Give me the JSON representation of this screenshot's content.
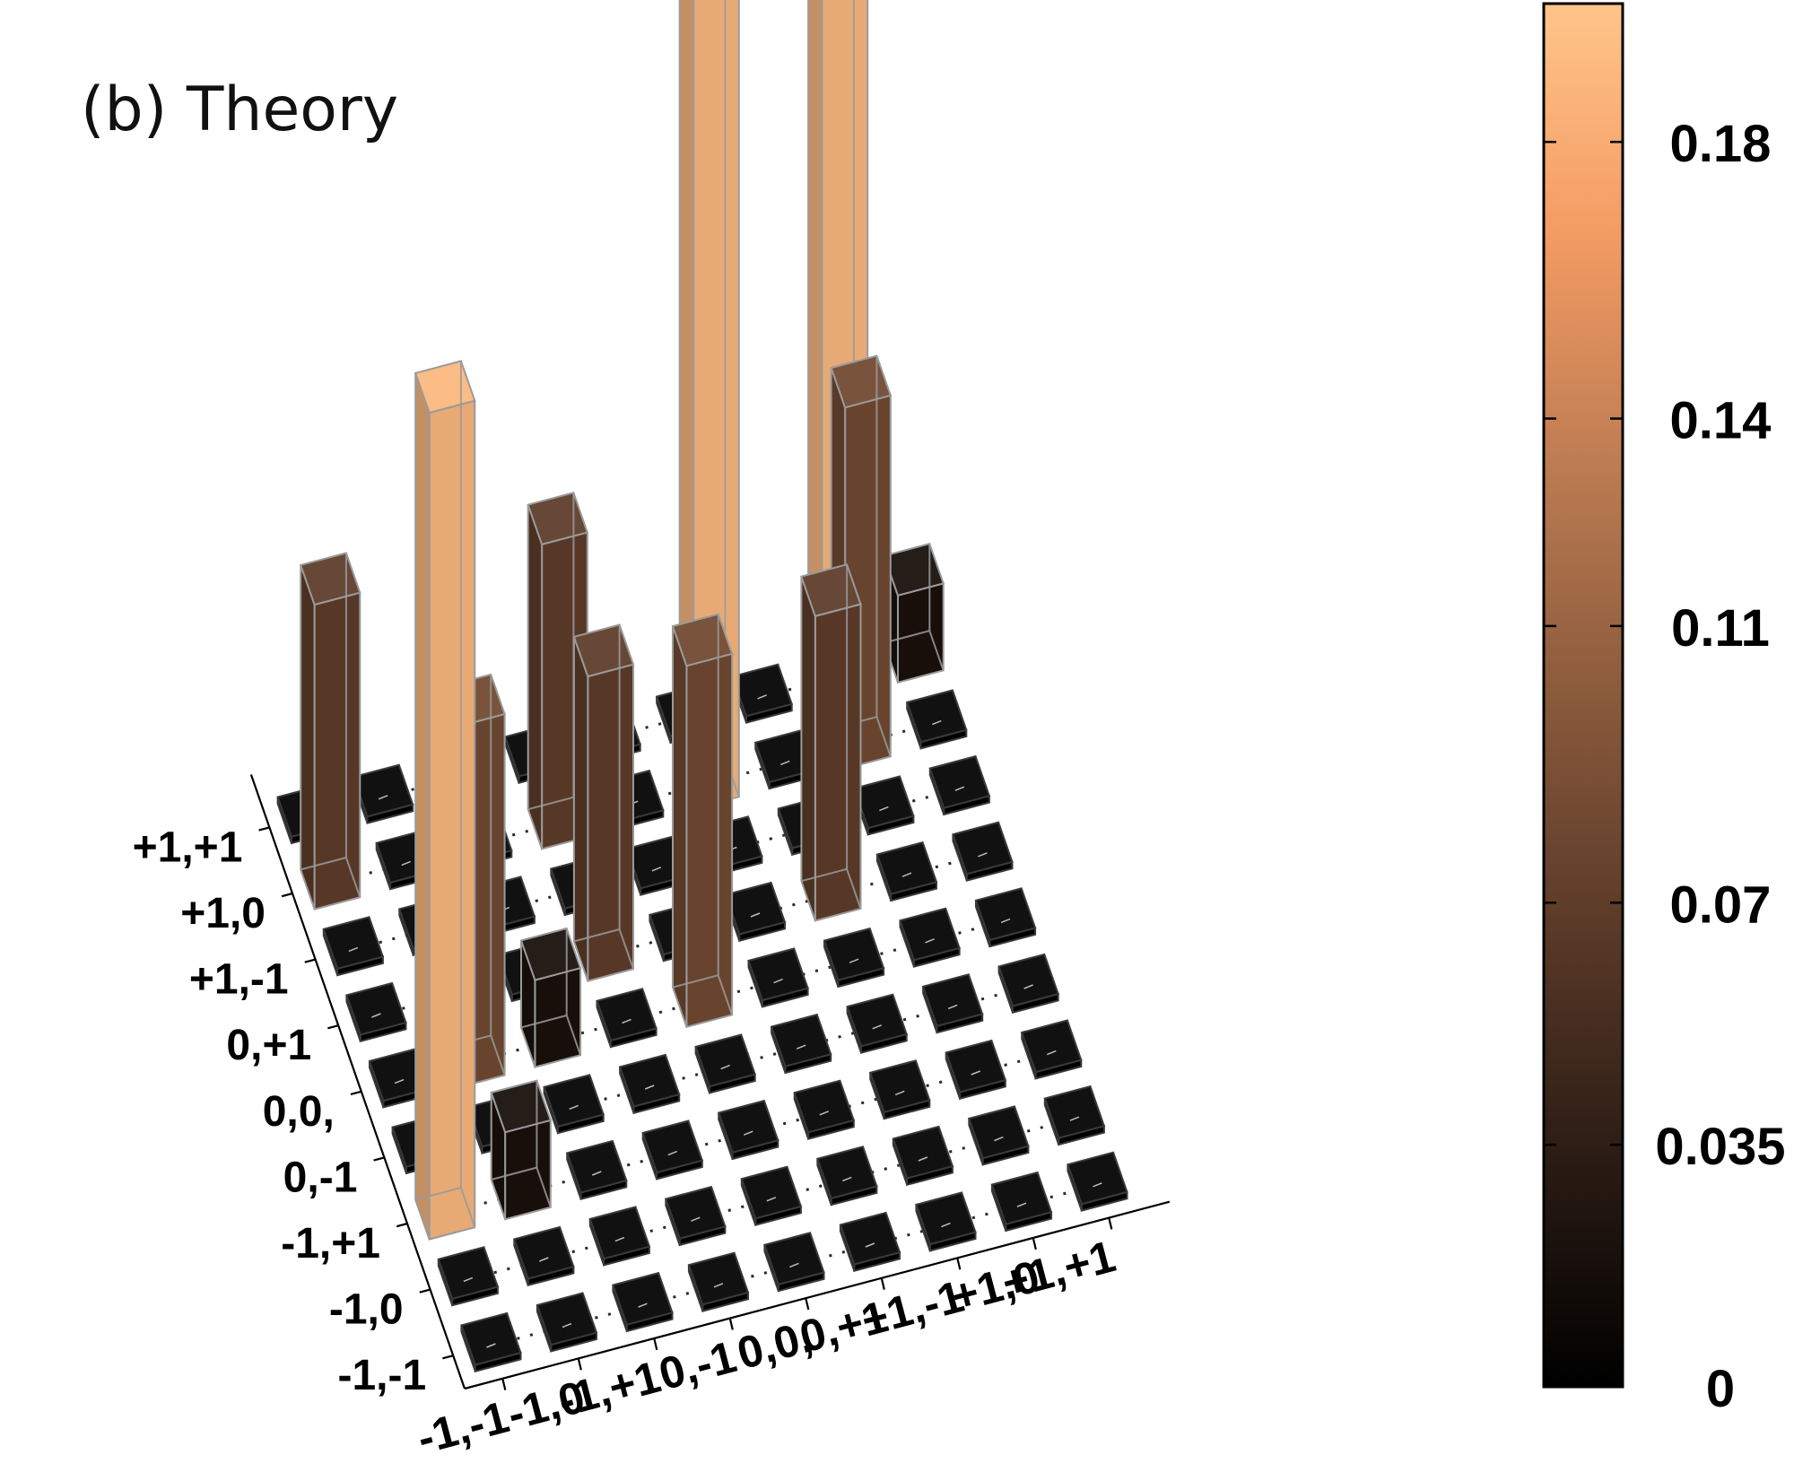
{
  "panel_title": "(b)  Theory",
  "colors": {
    "colormap": [
      "#000000",
      "#2b1c14",
      "#5a3a28",
      "#8a5a3c",
      "#bd7c52",
      "#f39b63",
      "#ffc58a"
    ]
  },
  "chart_data": {
    "type": "bar3d",
    "title": "(b)  Theory",
    "x_labels": [
      "-1,-1",
      "-1,0",
      "-1,+1",
      "0,-1",
      "0,0,",
      "0,+1",
      "+1,-1",
      "+1,0",
      "+1,+1"
    ],
    "y_labels": [
      "-1,-1",
      "-1,0",
      "-1,+1",
      "0,-1",
      "0,0,",
      "0,+1",
      "+1,-1",
      "+1,0",
      "+1,+1"
    ],
    "zlim": [
      0,
      0.2
    ],
    "grid": true,
    "colorbar": {
      "range": [
        0,
        0.2
      ],
      "ticks": [
        0,
        0.035,
        0.07,
        0.11,
        0.14,
        0.18
      ],
      "tick_labels": [
        "0",
        "0.035",
        "0.07",
        "0.11",
        "0.14",
        "0.18"
      ]
    },
    "matrix_rows_by_y": [
      [
        0,
        0,
        0,
        0,
        0,
        0,
        0,
        0,
        0
      ],
      [
        0,
        0,
        0,
        0,
        0,
        0,
        0,
        0,
        0
      ],
      [
        0.19,
        0.02,
        0,
        0,
        0,
        0,
        0,
        0,
        0
      ],
      [
        0,
        0,
        0,
        0,
        0,
        0,
        0,
        0,
        0
      ],
      [
        0,
        0.083,
        0.02,
        0,
        0.083,
        0,
        0,
        0,
        0
      ],
      [
        0,
        0.07,
        0,
        0.07,
        0,
        0,
        0.07,
        0,
        0
      ],
      [
        0,
        0,
        0,
        0,
        0,
        0,
        0,
        0,
        0
      ],
      [
        0.07,
        0,
        0,
        0.07,
        0,
        0.19,
        0,
        0.083,
        0
      ],
      [
        0,
        0,
        0,
        0,
        0,
        0,
        0,
        0.19,
        0.02
      ]
    ]
  }
}
